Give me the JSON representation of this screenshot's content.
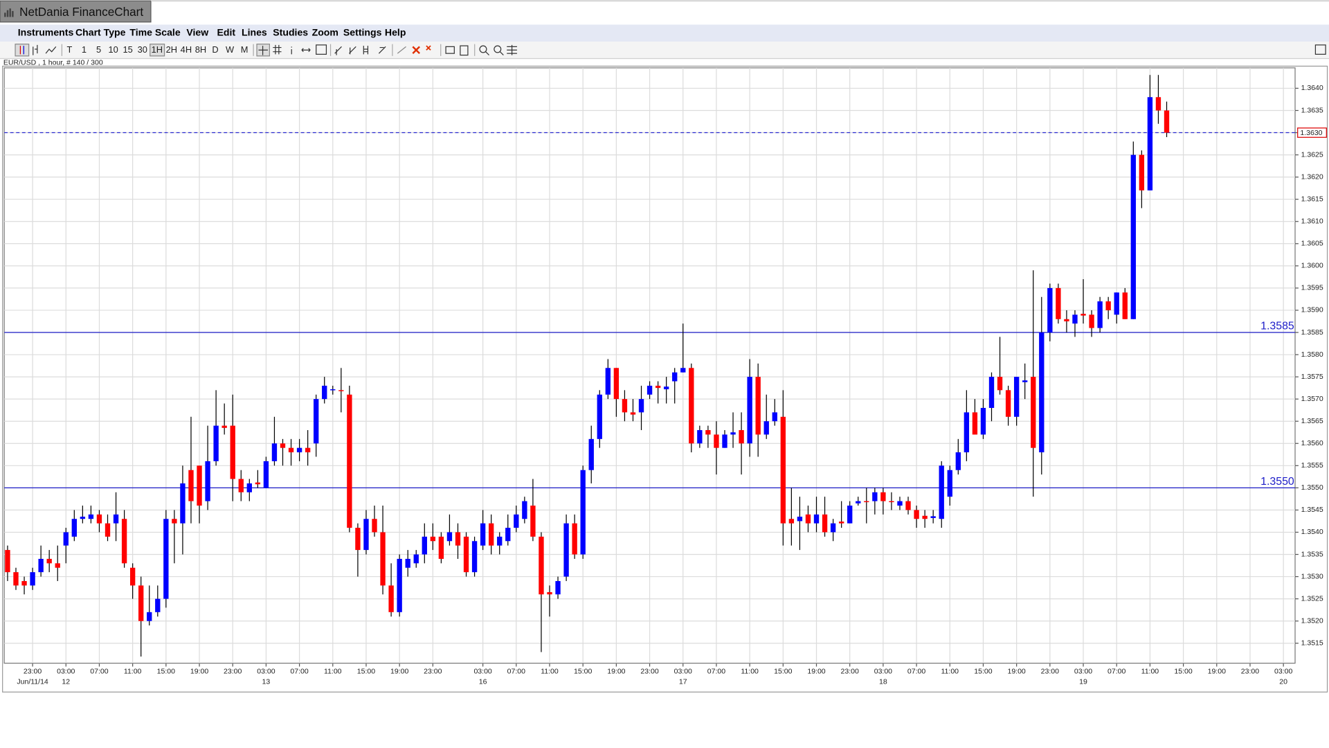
{
  "app": {
    "title": "NetDania FinanceChart",
    "menu": [
      "Instruments",
      "Chart Type",
      "Time Scale",
      "View",
      "Edit",
      "Lines",
      "Studies",
      "Zoom",
      "Settings",
      "Help"
    ],
    "timescales": [
      "T",
      "1",
      "5",
      "10",
      "15",
      "30",
      "1H",
      "2H",
      "4H",
      "8H",
      "D",
      "W",
      "M"
    ],
    "info": "EUR/USD , 1 hour, # 140 / 300"
  },
  "chart_data": {
    "type": "candlestick",
    "up_color": "#0000ff",
    "down_color": "#ff0000",
    "level_color": "#1c1cc8",
    "grid": true,
    "xlim": [
      -0.4,
      154.4
    ],
    "ylim": [
      1.35105,
      1.36446
    ],
    "yticks": [
      1.3515,
      {
        "value": 1.352,
        "label": "1.3520"
      },
      1.3525,
      {
        "value": 1.353,
        "label": "1.3530"
      },
      1.3535,
      {
        "value": 1.354,
        "label": "1.3540"
      },
      1.3545,
      {
        "value": 1.355,
        "label": "1.3550"
      },
      1.3555,
      {
        "value": 1.356,
        "label": "1.3560"
      },
      1.3565,
      {
        "value": 1.357,
        "label": "1.3570"
      },
      1.3575,
      {
        "value": 1.358,
        "label": "1.3580"
      },
      1.3585,
      {
        "value": 1.359,
        "label": "1.3590"
      },
      1.3595,
      {
        "value": 1.36,
        "label": "1.3600"
      },
      1.3605,
      {
        "value": 1.361,
        "label": "1.3610"
      },
      1.3615,
      {
        "value": 1.362,
        "label": "1.3620"
      },
      1.3625,
      {
        "value": 1.363,
        "label": "1.3630"
      },
      1.3635,
      {
        "value": 1.364,
        "label": "1.3640"
      }
    ],
    "xticks": [
      {
        "value": 3,
        "label": "23:00"
      },
      {
        "value": 7,
        "label": "03:00"
      },
      {
        "value": 11,
        "label": "07:00"
      },
      {
        "value": 15,
        "label": "11:00"
      },
      {
        "value": 19,
        "label": "15:00"
      },
      {
        "value": 23,
        "label": "19:00"
      },
      {
        "value": 27,
        "label": "23:00"
      },
      {
        "value": 31,
        "label": "03:00"
      },
      {
        "value": 35,
        "label": "07:00"
      },
      {
        "value": 39,
        "label": "11:00"
      },
      {
        "value": 43,
        "label": "15:00"
      },
      {
        "value": 47,
        "label": "19:00"
      },
      {
        "value": 51,
        "label": "23:00"
      },
      {
        "value": 57,
        "label": "03:00"
      },
      {
        "value": 61,
        "label": "07:00"
      },
      {
        "value": 65,
        "label": "11:00"
      },
      {
        "value": 69,
        "label": "15:00"
      },
      {
        "value": 73,
        "label": "19:00"
      },
      {
        "value": 77,
        "label": "23:00"
      },
      {
        "value": 81,
        "label": "03:00"
      },
      {
        "value": 85,
        "label": "07:00"
      },
      {
        "value": 89,
        "label": "11:00"
      },
      {
        "value": 93,
        "label": "15:00"
      },
      {
        "value": 97,
        "label": "19:00"
      },
      {
        "value": 101,
        "label": "23:00"
      },
      {
        "value": 105,
        "label": "03:00"
      },
      {
        "value": 109,
        "label": "07:00"
      },
      {
        "value": 113,
        "label": "11:00"
      },
      {
        "value": 117,
        "label": "15:00"
      },
      {
        "value": 121,
        "label": "19:00"
      },
      {
        "value": 125,
        "label": "23:00"
      },
      {
        "value": 129,
        "label": "03:00"
      },
      {
        "value": 133,
        "label": "07:00"
      },
      {
        "value": 137,
        "label": "11:00"
      },
      {
        "value": 141,
        "label": "15:00"
      },
      {
        "value": 145,
        "label": "19:00"
      },
      {
        "value": 149,
        "label": "23:00"
      },
      {
        "value": 153,
        "label": "03:00"
      }
    ],
    "date_labels": [
      {
        "value": 3,
        "label": "Jun/11/14"
      },
      {
        "value": 7,
        "label": "12"
      },
      {
        "value": 31,
        "label": "13"
      },
      {
        "value": 57,
        "label": "16"
      },
      {
        "value": 81,
        "label": "17"
      },
      {
        "value": 105,
        "label": "18"
      },
      {
        "value": 129,
        "label": "19"
      },
      {
        "value": 153,
        "label": "20"
      }
    ],
    "levels": [
      1.3585,
      {
        "value": 1.355,
        "label": "1.3550"
      }
    ],
    "last_price": {
      "value": 1.363,
      "label": "1.3630"
    },
    "open": [
      1.3536,
      1.3531,
      1.3529,
      1.3528,
      1.3531,
      1.3534,
      1.3533,
      1.3537,
      1.3539,
      1.3543,
      1.3543,
      1.3544,
      1.3542,
      1.3542,
      1.3543,
      1.3532,
      1.3528,
      1.352,
      1.3522,
      1.3525,
      1.3543,
      1.3542,
      1.3554,
      1.3555,
      1.3547,
      1.3556,
      1.3564,
      1.3564,
      1.3552,
      1.3549,
      1.35512,
      1.355,
      1.3556,
      1.356,
      1.3559,
      1.3558,
      1.3559,
      1.356,
      1.357,
      1.3572,
      1.3572,
      1.3571,
      1.3541,
      1.3536,
      1.3543,
      1.354,
      1.3528,
      1.3522,
      1.3532,
      1.3533,
      1.3535,
      1.3539,
      1.3539,
      1.3538,
      1.354,
      1.3539,
      1.3531,
      1.3537,
      1.3542,
      1.3537,
      1.3538,
      1.3541,
      1.3543,
      1.3546,
      1.3539,
      1.35265,
      1.3526,
      1.353,
      1.3542,
      1.3535,
      1.3554,
      1.3561,
      1.3571,
      1.3577,
      1.357,
      1.3567,
      1.3567,
      1.3571,
      1.3573,
      1.35722,
      1.3574,
      1.3576,
      1.3577,
      1.356,
      1.3563,
      1.3562,
      1.3559,
      1.3562,
      1.3563,
      1.356,
      1.3575,
      1.3562,
      1.3565,
      1.3566,
      1.3543,
      1.35425,
      1.3544,
      1.3542,
      1.3544,
      1.354,
      1.35424,
      1.3542,
      1.35465,
      1.3547,
      1.3547,
      1.3549,
      1.3547,
      1.3546,
      1.3547,
      1.3545,
      1.35437,
      1.35432,
      1.3543,
      1.3548,
      1.3554,
      1.3558,
      1.3567,
      1.3562,
      1.3568,
      1.3575,
      1.3572,
      1.3566,
      1.35738,
      1.3575,
      1.3558,
      1.3585,
      1.3595,
      1.3588,
      1.3587,
      1.35892,
      1.3589,
      1.3586,
      1.3592,
      1.3589,
      1.3594,
      1.3588,
      1.3625,
      1.3617,
      1.3638,
      1.3635
    ],
    "high": [
      1.3537,
      1.3532,
      1.353,
      1.3532,
      1.3537,
      1.3536,
      1.3537,
      1.3541,
      1.3545,
      1.3546,
      1.3546,
      1.3545,
      1.3544,
      1.3549,
      1.3545,
      1.3533,
      1.353,
      1.3528,
      1.3528,
      1.3545,
      1.3545,
      1.3555,
      1.3566,
      1.3555,
      1.3564,
      1.3572,
      1.3569,
      1.3571,
      1.3554,
      1.3552,
      1.3554,
      1.3557,
      1.3566,
      1.3561,
      1.3561,
      1.3561,
      1.3563,
      1.3571,
      1.3575,
      1.3573,
      1.3577,
      1.3573,
      1.3542,
      1.3545,
      1.3546,
      1.3546,
      1.3533,
      1.3535,
      1.3536,
      1.3536,
      1.3542,
      1.3542,
      1.354,
      1.3544,
      1.3542,
      1.354,
      1.3539,
      1.3545,
      1.3544,
      1.354,
      1.3544,
      1.3546,
      1.3548,
      1.3552,
      1.354,
      1.3528,
      1.353,
      1.3544,
      1.3544,
      1.3555,
      1.3564,
      1.3572,
      1.3579,
      1.3577,
      1.3572,
      1.357,
      1.3573,
      1.3574,
      1.3574,
      1.3575,
      1.3577,
      1.3587,
      1.3578,
      1.3564,
      1.3564,
      1.3565,
      1.3563,
      1.3567,
      1.3567,
      1.3579,
      1.3578,
      1.3571,
      1.357,
      1.3572,
      1.355,
      1.3548,
      1.3546,
      1.3548,
      1.3548,
      1.3543,
      1.3547,
      1.3547,
      1.3548,
      1.355,
      1.355,
      1.355,
      1.3549,
      1.3548,
      1.3548,
      1.3546,
      1.3545,
      1.3545,
      1.3556,
      1.3555,
      1.3561,
      1.3572,
      1.357,
      1.357,
      1.3576,
      1.3584,
      1.3573,
      1.3575,
      1.3578,
      1.3599,
      1.3593,
      1.3596,
      1.3596,
      1.359,
      1.359,
      1.3597,
      1.359,
      1.3593,
      1.3593,
      1.3594,
      1.3595,
      1.3628,
      1.3626,
      1.3643,
      1.3643,
      1.3637
    ],
    "low": [
      1.3529,
      1.3527,
      1.3526,
      1.3527,
      1.353,
      1.3531,
      1.3529,
      1.3533,
      1.3538,
      1.3542,
      1.3542,
      1.354,
      1.3538,
      1.3538,
      1.3532,
      1.3525,
      1.3512,
      1.3519,
      1.3521,
      1.3523,
      1.3533,
      1.3535,
      1.3542,
      1.3542,
      1.3545,
      1.3555,
      1.3562,
      1.3547,
      1.3547,
      1.3547,
      1.355,
      1.355,
      1.3555,
      1.3555,
      1.3555,
      1.3556,
      1.3555,
      1.3557,
      1.3569,
      1.3571,
      1.3567,
      1.354,
      1.353,
      1.3535,
      1.3539,
      1.3526,
      1.3521,
      1.3521,
      1.353,
      1.3532,
      1.3533,
      1.3536,
      1.3533,
      1.3537,
      1.3534,
      1.353,
      1.353,
      1.3536,
      1.3535,
      1.3535,
      1.3537,
      1.354,
      1.3542,
      1.3538,
      1.3513,
      1.3521,
      1.3525,
      1.3529,
      1.3534,
      1.3534,
      1.3551,
      1.3559,
      1.357,
      1.3566,
      1.3565,
      1.3565,
      1.3563,
      1.357,
      1.3569,
      1.3569,
      1.3569,
      1.3576,
      1.3558,
      1.3559,
      1.3559,
      1.3553,
      1.3559,
      1.3559,
      1.3553,
      1.3557,
      1.3557,
      1.3561,
      1.3564,
      1.3537,
      1.3537,
      1.3536,
      1.354,
      1.354,
      1.3539,
      1.3538,
      1.3541,
      1.3542,
      1.3546,
      1.3542,
      1.3544,
      1.3544,
      1.3545,
      1.3545,
      1.3544,
      1.3541,
      1.3541,
      1.3542,
      1.3541,
      1.3546,
      1.3553,
      1.3556,
      1.3562,
      1.3561,
      1.3565,
      1.3571,
      1.3564,
      1.3564,
      1.357,
      1.3548,
      1.3553,
      1.3583,
      1.3587,
      1.3585,
      1.3584,
      1.3587,
      1.3584,
      1.3585,
      1.3588,
      1.3587,
      1.3588,
      1.3588,
      1.3613,
      1.3617,
      1.3632,
      1.3629
    ],
    "close": [
      1.3531,
      1.3528,
      1.3528,
      1.3531,
      1.3534,
      1.3533,
      1.3532,
      1.354,
      1.3543,
      1.35435,
      1.3544,
      1.3542,
      1.3539,
      1.3544,
      1.3533,
      1.3528,
      1.352,
      1.3522,
      1.3525,
      1.3543,
      1.3542,
      1.3551,
      1.3547,
      1.3546,
      1.3556,
      1.3564,
      1.35635,
      1.3552,
      1.3549,
      1.3551,
      1.35508,
      1.3556,
      1.356,
      1.3559,
      1.3558,
      1.3559,
      1.3558,
      1.357,
      1.3573,
      1.35722,
      1.35718,
      1.3541,
      1.3536,
      1.3543,
      1.354,
      1.3528,
      1.3522,
      1.3534,
      1.3534,
      1.3535,
      1.3539,
      1.3538,
      1.3534,
      1.354,
      1.3537,
      1.3531,
      1.3538,
      1.3542,
      1.3537,
      1.3539,
      1.3541,
      1.3544,
      1.3547,
      1.3539,
      1.3526,
      1.3526,
      1.3529,
      1.3542,
      1.3535,
      1.3554,
      1.3561,
      1.3571,
      1.3577,
      1.357,
      1.3567,
      1.35665,
      1.357,
      1.3573,
      1.35725,
      1.35728,
      1.3576,
      1.3577,
      1.356,
      1.3563,
      1.3562,
      1.3559,
      1.3562,
      1.35625,
      1.356,
      1.3575,
      1.3562,
      1.3565,
      1.3567,
      1.3542,
      1.3542,
      1.35435,
      1.3542,
      1.3544,
      1.354,
      1.3542,
      1.3542,
      1.3546,
      1.3547,
      1.35468,
      1.3549,
      1.3547,
      1.35468,
      1.3547,
      1.3545,
      1.3543,
      1.3543,
      1.35436,
      1.3555,
      1.3554,
      1.3558,
      1.3567,
      1.3562,
      1.3568,
      1.3575,
      1.3572,
      1.3566,
      1.3575,
      1.35742,
      1.3559,
      1.3585,
      1.3595,
      1.3588,
      1.35875,
      1.3589,
      1.35888,
      1.3586,
      1.3592,
      1.359,
      1.3594,
      1.3588,
      1.3625,
      1.3617,
      1.3638,
      1.3635,
      1.363
    ]
  }
}
